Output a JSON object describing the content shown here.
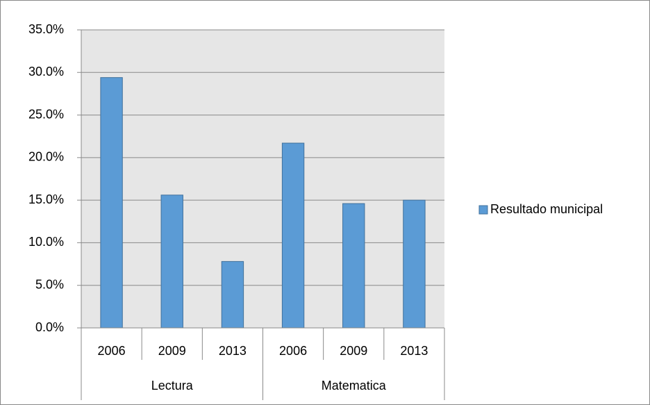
{
  "chart_data": {
    "type": "bar",
    "categories": [
      "2006",
      "2009",
      "2013",
      "2006",
      "2009",
      "2013"
    ],
    "groups": [
      "Lectura",
      "Matematica"
    ],
    "series": [
      {
        "name": "Resultado municipal",
        "color": "#5b9bd5",
        "values": [
          29.4,
          15.6,
          7.8,
          21.7,
          14.6,
          15.0
        ]
      }
    ],
    "ylim": [
      0,
      35
    ],
    "yticks": [
      {
        "value": 0,
        "label": "0.0%"
      },
      {
        "value": 5,
        "label": "5.0%"
      },
      {
        "value": 10,
        "label": "10.0%"
      },
      {
        "value": 15,
        "label": "15.0%"
      },
      {
        "value": 20,
        "label": "20.0%"
      },
      {
        "value": 25,
        "label": "25.0%"
      },
      {
        "value": 30,
        "label": "30.0%"
      },
      {
        "value": 35,
        "label": "35.0%"
      }
    ],
    "grid": true,
    "legend": "right"
  }
}
